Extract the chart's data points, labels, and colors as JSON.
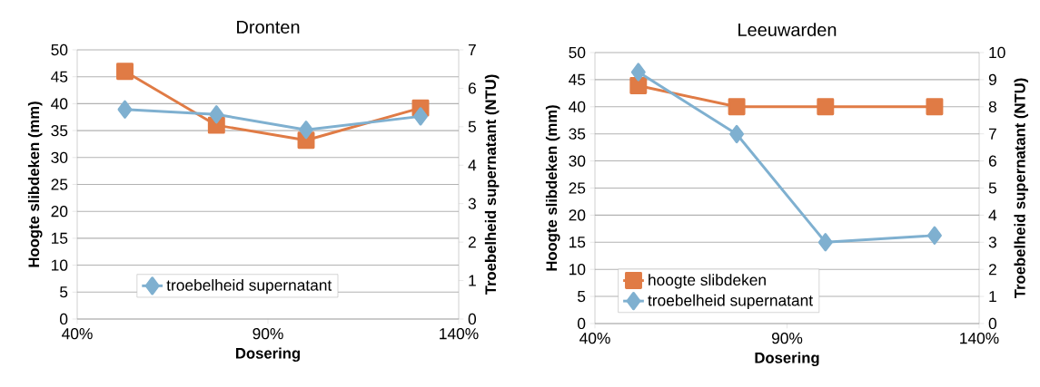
{
  "chart_data": [
    {
      "type": "line",
      "title": "Dronten",
      "xlabel": "Dosering",
      "ylabel": "Hoogte slibdeken (mm)",
      "y2label": "Troebelheid supernatant (NTU)",
      "xlim": [
        40,
        140
      ],
      "xticks": [
        {
          "value": 40,
          "label": "40%"
        },
        {
          "value": 90,
          "label": "90%"
        },
        {
          "value": 140,
          "label": "140%"
        }
      ],
      "ylim": [
        0,
        50
      ],
      "yticks": [
        0,
        5,
        10,
        15,
        20,
        25,
        30,
        35,
        40,
        45,
        50
      ],
      "y2lim": [
        0,
        7
      ],
      "y2ticks": [
        0,
        1,
        2,
        3,
        4,
        5,
        6,
        7
      ],
      "grid": "y",
      "legend": "bottom",
      "series": [
        {
          "color": "#e07b45",
          "marker": "square",
          "line_style": "solid",
          "x": [
            52.5,
            76.5,
            100,
            130
          ],
          "values": [
            46,
            36,
            33.2,
            39.2
          ]
        },
        {
          "name": "troebelheid supernatant",
          "color": "#7fb0d0",
          "marker": "diamond",
          "line_style": "solid",
          "axis": "y2",
          "x": [
            52.5,
            76.5,
            100,
            130
          ],
          "values": [
            5.45,
            5.32,
            4.92,
            5.27
          ]
        }
      ]
    },
    {
      "type": "line",
      "title": "Leeuwarden",
      "xlabel": "Dosering",
      "ylabel": "Hoogte slibdeken (mm)",
      "y2label": "Troebelheid supernatant (NTU)",
      "xlim": [
        40,
        140
      ],
      "xticks": [
        {
          "value": 40,
          "label": "40%"
        },
        {
          "value": 90,
          "label": "90%"
        },
        {
          "value": 140,
          "label": "140%"
        }
      ],
      "ylim": [
        0,
        50
      ],
      "yticks": [
        0,
        5,
        10,
        15,
        20,
        25,
        30,
        35,
        40,
        45,
        50
      ],
      "y2lim": [
        0,
        10
      ],
      "y2ticks": [
        0,
        1,
        2,
        3,
        4,
        5,
        6,
        7,
        8,
        9,
        10
      ],
      "grid": "y",
      "legend": "bottom left",
      "series": [
        {
          "name": "hoogte slibdeken",
          "color": "#e07b45",
          "marker": "square",
          "line_style": "solid",
          "x": [
            51.3,
            76.9,
            100,
            128.4
          ],
          "values": [
            43.9,
            40,
            40,
            40
          ]
        },
        {
          "name": "troebelheid supernatant",
          "color": "#7fb0d0",
          "marker": "diamond",
          "line_style": "solid",
          "axis": "y2",
          "x": [
            51.3,
            76.9,
            100,
            128.4
          ],
          "values": [
            9.28,
            6.99,
            3.0,
            3.25
          ]
        }
      ]
    }
  ]
}
